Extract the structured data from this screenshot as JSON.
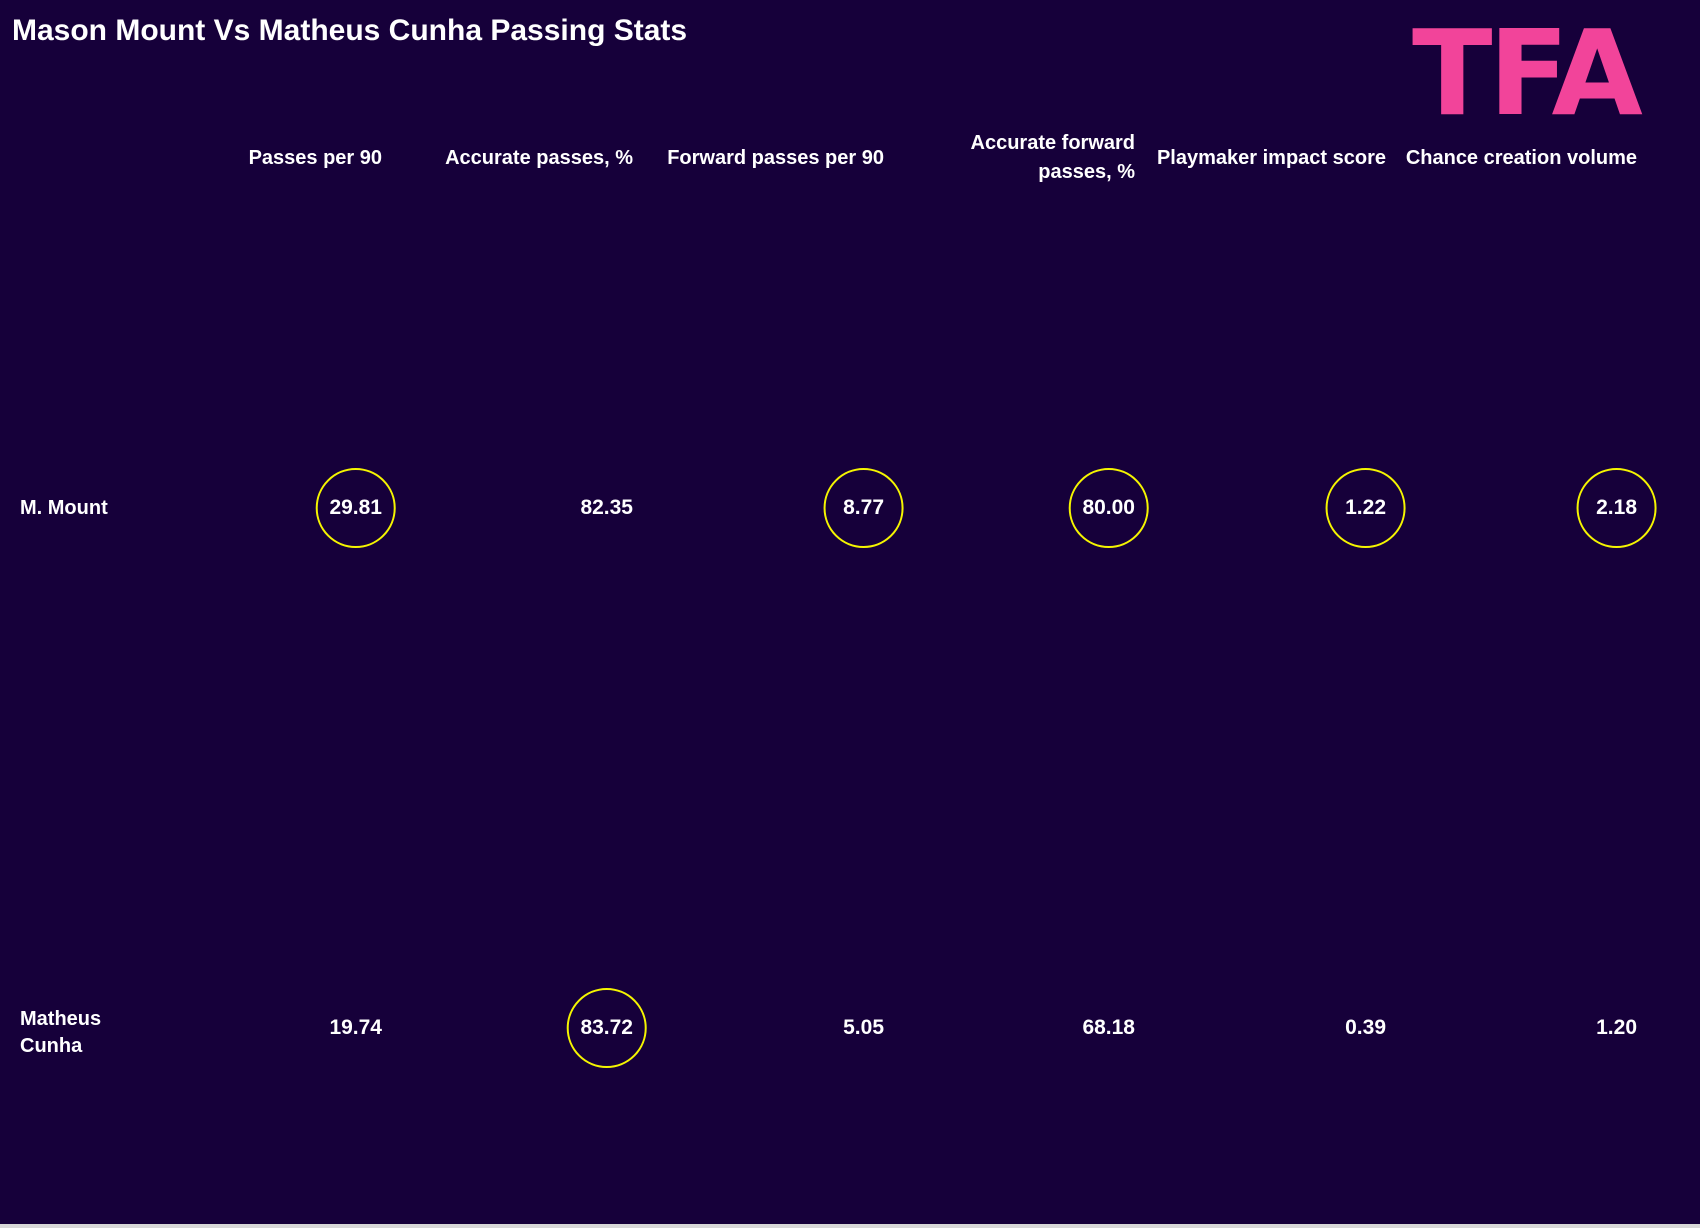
{
  "header": {
    "title": "Mason Mount Vs Matheus Cunha Passing Stats",
    "logo": "TFA"
  },
  "table": {
    "columns": [
      "Passes per 90",
      "Accurate passes, %",
      "Forward passes per 90",
      "Accurate forward passes, %",
      "Playmaker impact score",
      "Chance creation volume"
    ],
    "rows": [
      {
        "name": "M. Mount",
        "cells": [
          "29.81",
          "82.35",
          "8.77",
          "80.00",
          "1.22",
          "2.18"
        ]
      },
      {
        "name": "Matheus Cunha",
        "cells": [
          "19.74",
          "83.72",
          "5.05",
          "68.18",
          "0.39",
          "1.20"
        ]
      }
    ],
    "highlight_color": "#f5f500"
  }
}
